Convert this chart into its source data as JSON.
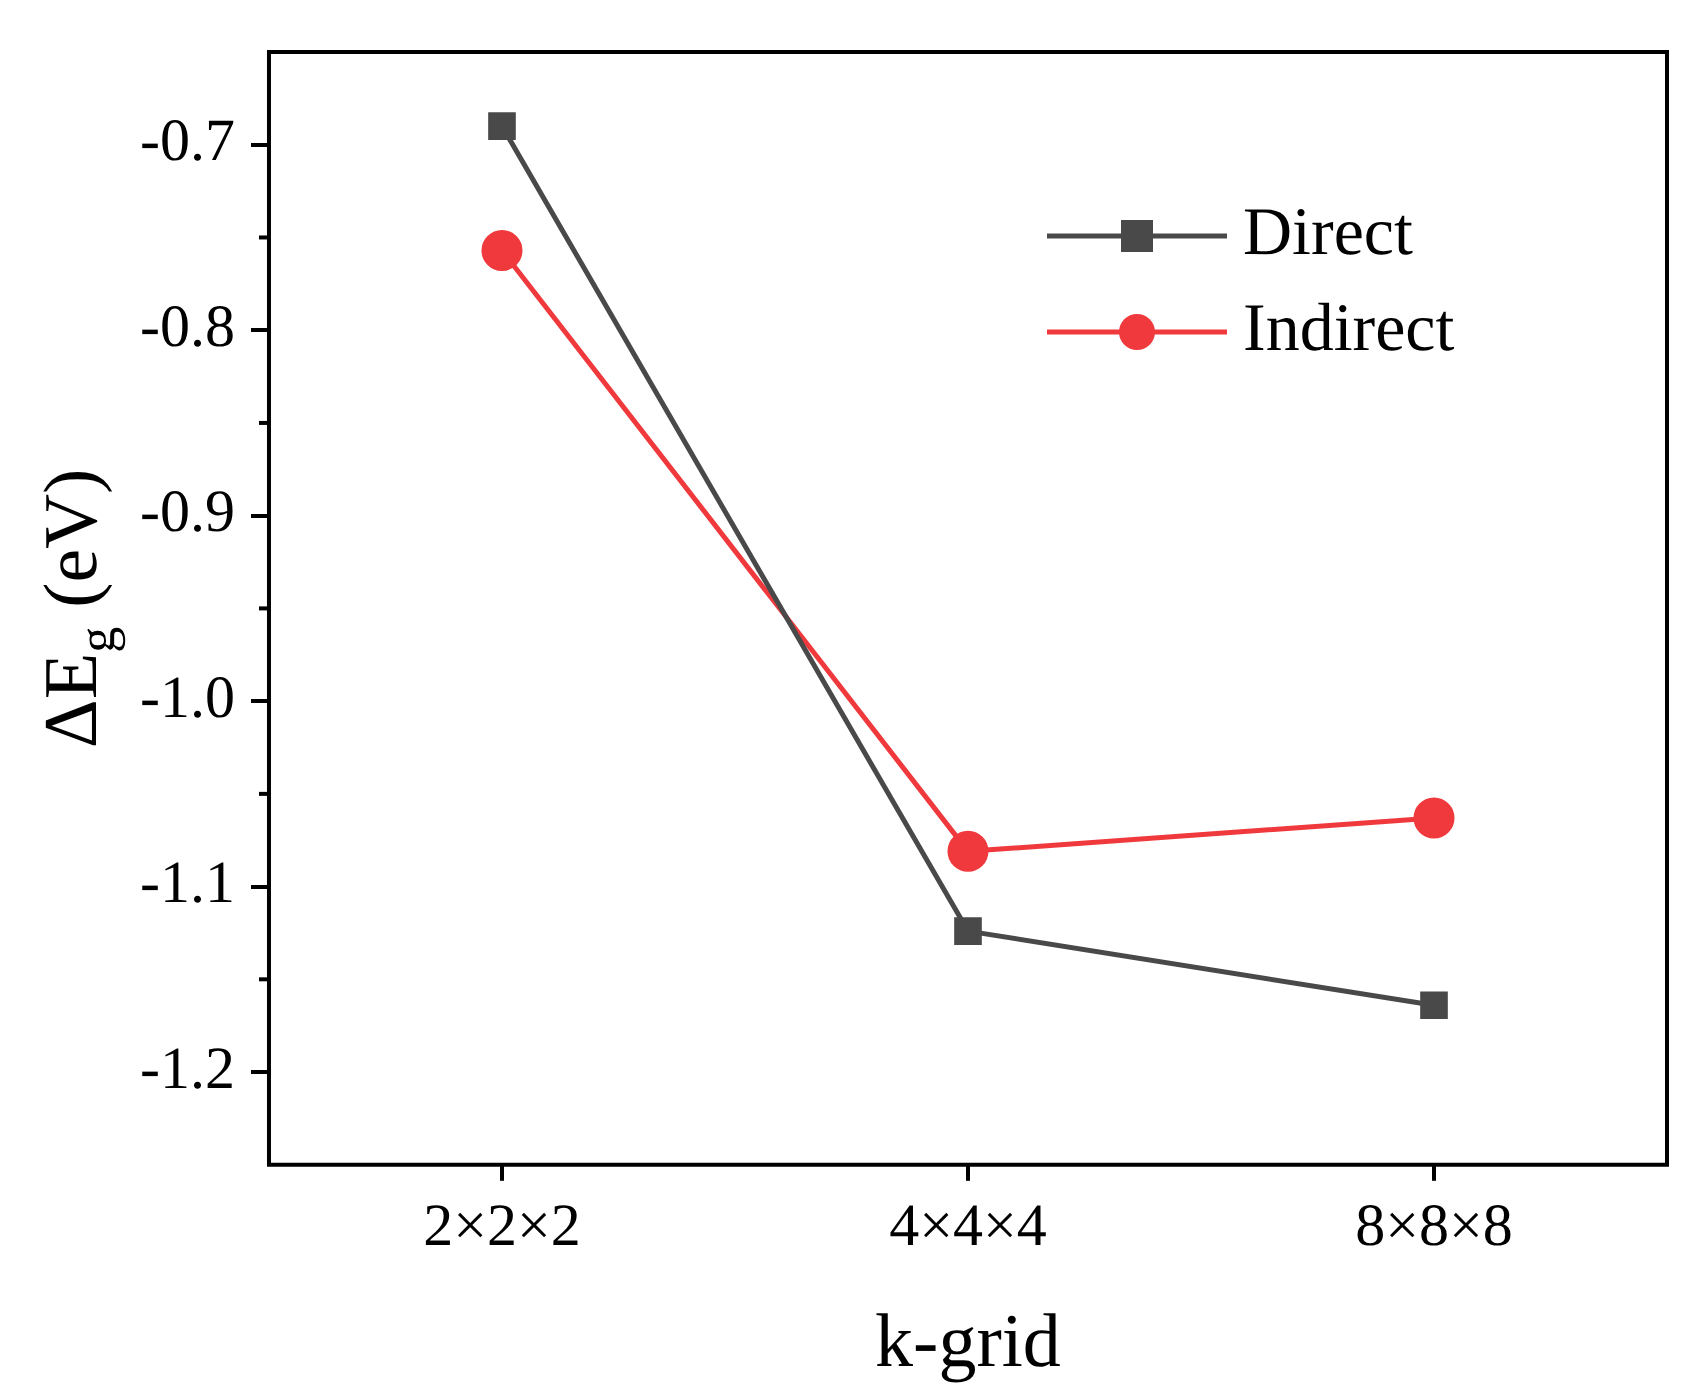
{
  "chart_data": {
    "type": "line",
    "xlabel": "k-grid",
    "ylabel": "ΔE$_{g}$ (eV)",
    "categories": [
      "2×2×2",
      "4×4×4",
      "8×8×8"
    ],
    "series": [
      {
        "name": "Direct",
        "color": "#494949",
        "values": [
          -0.69,
          -1.124,
          -1.164
        ],
        "marker": "square"
      },
      {
        "name": "Indirect",
        "color": "#f0393c",
        "values": [
          -0.757,
          -1.081,
          -1.063
        ],
        "marker": "circle"
      }
    ],
    "ylim": [
      -1.25,
      -0.65
    ],
    "yticks": [
      -0.7,
      -0.8,
      -0.9,
      {
        "value": -1,
        "label": "-1.0"
      },
      -1.1,
      -1.2
    ],
    "grid": false,
    "legend": "top right",
    "line_style": "solid"
  }
}
